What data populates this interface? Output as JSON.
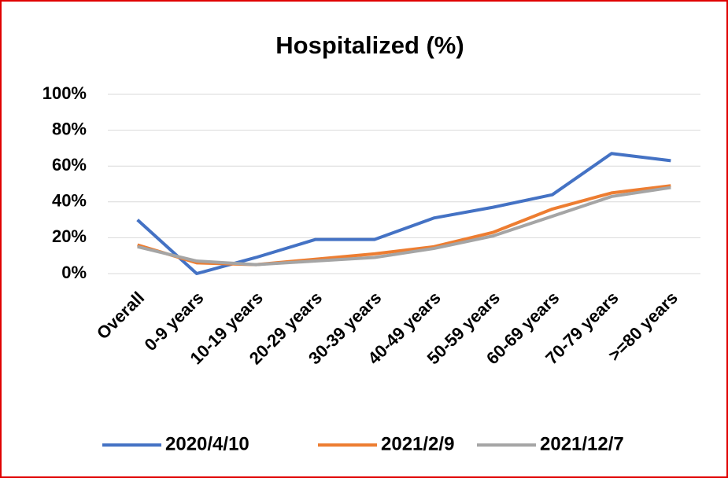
{
  "chart_data": {
    "type": "line",
    "title": "Hospitalized (%)",
    "categories": [
      "Overall",
      "0-9 years",
      "10-19 years",
      "20-29 years",
      "30-39 years",
      "40-49 years",
      "50-59 years",
      "60-69 years",
      "70-79 years",
      ">=80 years"
    ],
    "series": [
      {
        "name": "2020/4/10",
        "color": "#4472c4",
        "values": [
          30,
          0,
          9,
          19,
          19,
          31,
          37,
          44,
          67,
          63
        ]
      },
      {
        "name": "2021/2/9",
        "color": "#ed7d31",
        "values": [
          16,
          6,
          5,
          8,
          11,
          15,
          23,
          36,
          45,
          49
        ]
      },
      {
        "name": "2021/12/7",
        "color": "#a5a5a5",
        "values": [
          15,
          7,
          5,
          7,
          9,
          14,
          21,
          32,
          43,
          48
        ]
      }
    ],
    "ylim": [
      0,
      100
    ],
    "yticks": [
      {
        "value": 0,
        "label": "0%"
      },
      {
        "value": 20,
        "label": "20%"
      },
      {
        "value": 40,
        "label": "40%"
      },
      {
        "value": 60,
        "label": "60%"
      },
      {
        "value": 80,
        "label": "80%"
      },
      {
        "value": 100,
        "label": "100%"
      }
    ],
    "grid": true,
    "legend": "bottom"
  }
}
